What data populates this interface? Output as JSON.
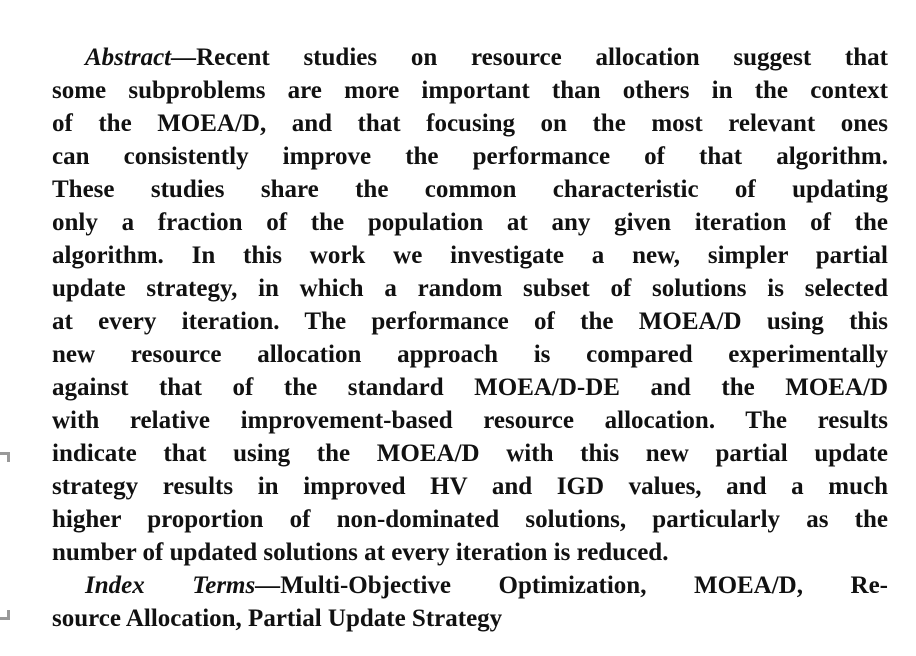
{
  "abstract": {
    "label": "Abstract—",
    "lines": [
      "Recent studies on resource allocation suggest that",
      "some subproblems are more important than others in the context",
      "of the MOEA/D, and that focusing on the most relevant ones",
      "can consistently improve the performance of that algorithm.",
      "These studies share the common characteristic of updating",
      "only a fraction of the population at any given iteration of the",
      "algorithm. In this work we investigate a new, simpler partial",
      "update strategy, in which a random subset of solutions is selected",
      "at every iteration. The performance of the MOEA/D using this",
      "new resource allocation approach is compared experimentally",
      "against that of the standard MOEA/D-DE and the MOEA/D",
      "with relative improvement-based resource allocation. The results",
      "indicate that using the MOEA/D with this new partial update",
      "strategy results in improved HV and IGD values, and a much",
      "higher proportion of non-dominated solutions, particularly as the",
      "number of updated solutions at every iteration is reduced."
    ]
  },
  "index_terms": {
    "label": "Index Terms—",
    "lines": [
      "Multi-Objective Optimization, MOEA/D, Re-",
      "source Allocation, Partial Update Strategy"
    ]
  }
}
